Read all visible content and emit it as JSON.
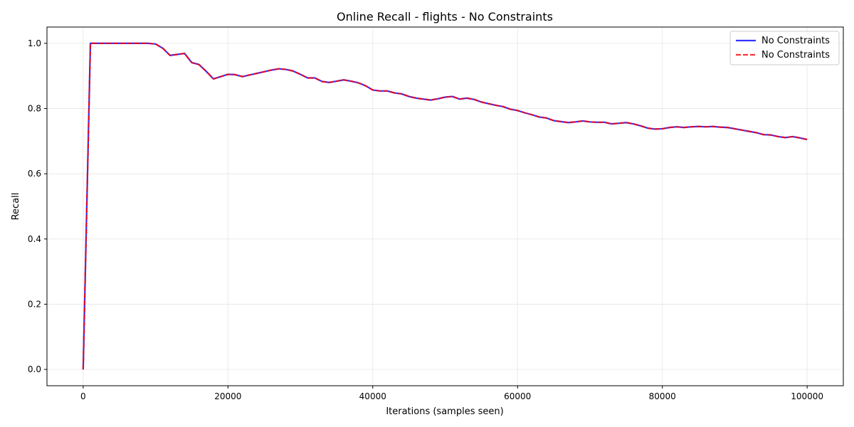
{
  "chart_data": {
    "type": "line",
    "title": "Online Recall - flights - No Constraints",
    "xlabel": "Iterations (samples seen)",
    "ylabel": "Recall",
    "xlim": [
      -5000,
      105000
    ],
    "ylim": [
      -0.05,
      1.05
    ],
    "grid": true,
    "legend_position": "top-right",
    "x_ticks": [
      0,
      20000,
      40000,
      60000,
      80000,
      100000
    ],
    "y_ticks": [
      0.0,
      0.2,
      0.4,
      0.6,
      0.8,
      1.0
    ],
    "x_tick_labels": [
      "0",
      "20000",
      "40000",
      "60000",
      "80000",
      "100000"
    ],
    "y_tick_labels": [
      "0.0",
      "0.2",
      "0.4",
      "0.6",
      "0.8",
      "1.0"
    ],
    "x": [
      0,
      1000,
      2000,
      3000,
      4000,
      5000,
      6000,
      7000,
      8000,
      9000,
      10000,
      11000,
      12000,
      13000,
      14000,
      15000,
      16000,
      17000,
      18000,
      19000,
      20000,
      21000,
      22000,
      23000,
      24000,
      25000,
      26000,
      27000,
      28000,
      29000,
      30000,
      31000,
      32000,
      33000,
      34000,
      35000,
      36000,
      37000,
      38000,
      39000,
      40000,
      41000,
      42000,
      43000,
      44000,
      45000,
      46000,
      47000,
      48000,
      49000,
      50000,
      51000,
      52000,
      53000,
      54000,
      55000,
      56000,
      57000,
      58000,
      59000,
      60000,
      61000,
      62000,
      63000,
      64000,
      65000,
      66000,
      67000,
      68000,
      69000,
      70000,
      71000,
      72000,
      73000,
      74000,
      75000,
      76000,
      77000,
      78000,
      79000,
      80000,
      81000,
      82000,
      83000,
      84000,
      85000,
      86000,
      87000,
      88000,
      89000,
      90000,
      91000,
      92000,
      93000,
      94000,
      95000,
      96000,
      97000,
      98000,
      99000,
      100000
    ],
    "series": [
      {
        "name": "No Constraints",
        "color": "#0000ff",
        "style": "solid",
        "values": [
          0.0,
          1.0,
          1.0,
          1.0,
          1.0,
          1.0,
          1.0,
          1.0,
          1.0,
          1.0,
          0.998,
          0.985,
          0.963,
          0.966,
          0.969,
          0.941,
          0.935,
          0.914,
          0.891,
          0.898,
          0.905,
          0.904,
          0.898,
          0.903,
          0.908,
          0.913,
          0.918,
          0.922,
          0.92,
          0.915,
          0.905,
          0.894,
          0.894,
          0.883,
          0.88,
          0.884,
          0.888,
          0.884,
          0.879,
          0.87,
          0.857,
          0.854,
          0.854,
          0.848,
          0.845,
          0.837,
          0.832,
          0.829,
          0.826,
          0.83,
          0.835,
          0.837,
          0.829,
          0.832,
          0.828,
          0.82,
          0.815,
          0.81,
          0.806,
          0.798,
          0.794,
          0.787,
          0.781,
          0.774,
          0.771,
          0.763,
          0.76,
          0.757,
          0.759,
          0.762,
          0.759,
          0.758,
          0.758,
          0.753,
          0.755,
          0.757,
          0.753,
          0.747,
          0.74,
          0.737,
          0.738,
          0.742,
          0.744,
          0.742,
          0.744,
          0.745,
          0.744,
          0.745,
          0.743,
          0.742,
          0.738,
          0.734,
          0.73,
          0.726,
          0.72,
          0.719,
          0.714,
          0.711,
          0.714,
          0.71,
          0.705
        ]
      },
      {
        "name": "No Constraints",
        "color": "#ff0000",
        "style": "dashed",
        "values": [
          0.0,
          1.0,
          1.0,
          1.0,
          1.0,
          1.0,
          1.0,
          1.0,
          1.0,
          1.0,
          0.998,
          0.985,
          0.963,
          0.966,
          0.969,
          0.941,
          0.935,
          0.914,
          0.891,
          0.898,
          0.905,
          0.904,
          0.898,
          0.903,
          0.908,
          0.913,
          0.918,
          0.922,
          0.92,
          0.915,
          0.905,
          0.894,
          0.894,
          0.883,
          0.88,
          0.884,
          0.888,
          0.884,
          0.879,
          0.87,
          0.857,
          0.854,
          0.854,
          0.848,
          0.845,
          0.837,
          0.832,
          0.829,
          0.826,
          0.83,
          0.835,
          0.837,
          0.829,
          0.832,
          0.828,
          0.82,
          0.815,
          0.81,
          0.806,
          0.798,
          0.794,
          0.787,
          0.781,
          0.774,
          0.771,
          0.763,
          0.76,
          0.757,
          0.759,
          0.762,
          0.759,
          0.758,
          0.758,
          0.753,
          0.755,
          0.757,
          0.753,
          0.747,
          0.74,
          0.737,
          0.738,
          0.742,
          0.744,
          0.742,
          0.744,
          0.745,
          0.744,
          0.745,
          0.743,
          0.742,
          0.738,
          0.734,
          0.73,
          0.726,
          0.72,
          0.719,
          0.714,
          0.711,
          0.714,
          0.71,
          0.705
        ]
      }
    ]
  }
}
